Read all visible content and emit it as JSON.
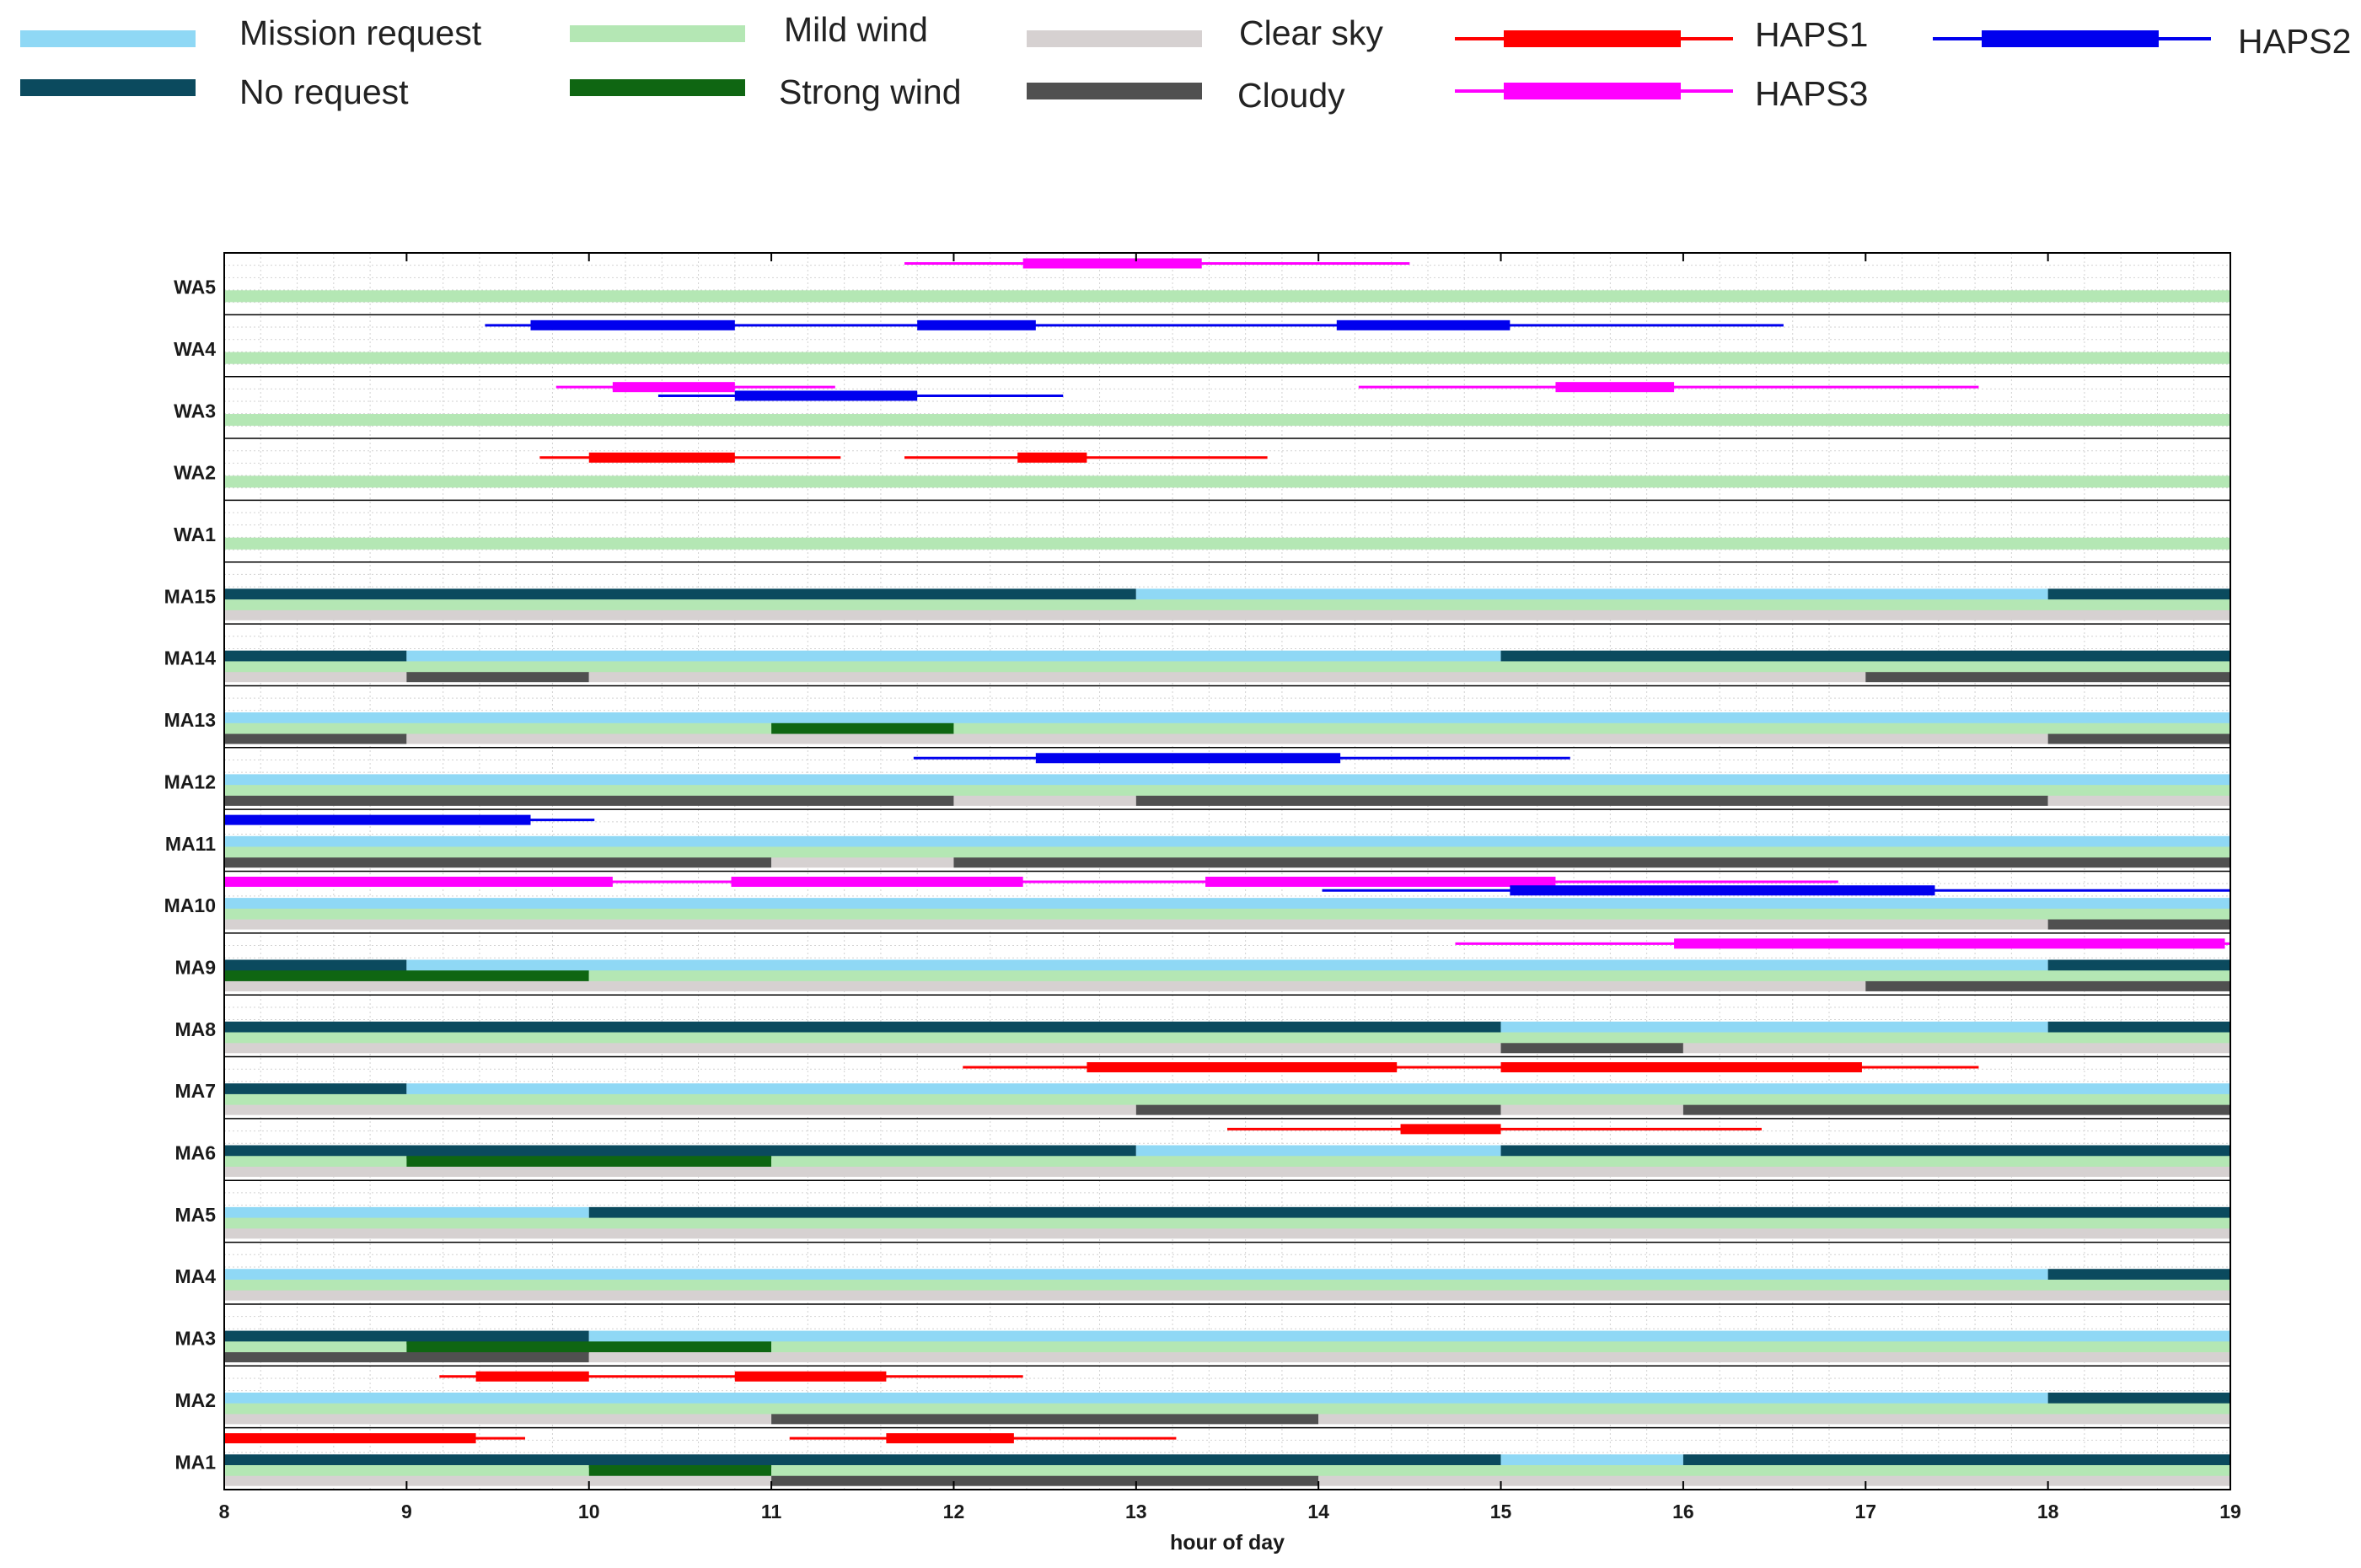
{
  "legend": {
    "items": [
      {
        "key": "mission",
        "label": "Mission request",
        "color": "#8fd8f5",
        "kind": "bar"
      },
      {
        "key": "norequest",
        "label": "No request",
        "color": "#0b4a5e",
        "kind": "bar"
      },
      {
        "key": "mild",
        "label": "Mild wind",
        "color": "#b4e7b4",
        "kind": "bar"
      },
      {
        "key": "strong",
        "label": "Strong wind",
        "color": "#0f6612",
        "kind": "bar"
      },
      {
        "key": "clear",
        "label": "Clear sky",
        "color": "#d6d1d1",
        "kind": "bar"
      },
      {
        "key": "cloudy",
        "label": "Cloudy",
        "color": "#505050",
        "kind": "bar"
      },
      {
        "key": "haps1",
        "label": "HAPS1",
        "color": "#ff0000",
        "kind": "line"
      },
      {
        "key": "haps3",
        "label": "HAPS3",
        "color": "#ff00ff",
        "kind": "line"
      },
      {
        "key": "haps2",
        "label": "HAPS2",
        "color": "#0000ee",
        "kind": "line"
      }
    ]
  },
  "chart_data": {
    "type": "gantt-timeline",
    "xlabel": "hour of day",
    "xlim": [
      8,
      19
    ],
    "xticks": [
      "8",
      "9",
      "10",
      "11",
      "12",
      "13",
      "14",
      "15",
      "16",
      "17",
      "18",
      "19"
    ],
    "colors": {
      "mission": "#8fd8f5",
      "norequest": "#0b4a5e",
      "mild": "#b4e7b4",
      "strong": "#0f6612",
      "clear": "#d6d1d1",
      "cloudy": "#505050",
      "haps1": "#ff0000",
      "haps2": "#0000ee",
      "haps3": "#ff00ff"
    },
    "rows": [
      {
        "label": "WA5",
        "request": [],
        "wind": [
          [
            8,
            19,
            "mild"
          ]
        ],
        "sky": [],
        "haps": [
          {
            "haps": "haps3",
            "lane": 0,
            "win": [
              11.73,
              14.5
            ],
            "active": [
              12.38,
              13.36
            ]
          }
        ]
      },
      {
        "label": "WA4",
        "request": [],
        "wind": [
          [
            8,
            19,
            "mild"
          ]
        ],
        "sky": [],
        "haps": [
          {
            "haps": "haps2",
            "lane": 0,
            "win": [
              9.43,
              16.55
            ],
            "active": [
              9.68,
              10.8
            ]
          },
          {
            "haps": "haps2",
            "lane": 0,
            "win": [
              9.43,
              16.55
            ],
            "active": [
              11.8,
              12.45
            ]
          },
          {
            "haps": "haps2",
            "lane": 0,
            "win": [
              9.43,
              16.55
            ],
            "active": [
              14.1,
              15.05
            ]
          }
        ]
      },
      {
        "label": "WA3",
        "request": [],
        "wind": [
          [
            8,
            19,
            "mild"
          ]
        ],
        "sky": [],
        "haps": [
          {
            "haps": "haps3",
            "lane": 0,
            "win": [
              9.82,
              11.35
            ],
            "active": [
              10.13,
              10.8
            ]
          },
          {
            "haps": "haps3",
            "lane": 0,
            "win": [
              14.22,
              17.62
            ],
            "active": [
              15.3,
              15.95
            ]
          },
          {
            "haps": "haps2",
            "lane": 1,
            "win": [
              10.38,
              12.6
            ],
            "active": [
              10.8,
              11.8
            ]
          }
        ]
      },
      {
        "label": "WA2",
        "request": [],
        "wind": [
          [
            8,
            19,
            "mild"
          ]
        ],
        "sky": [],
        "haps": [
          {
            "haps": "haps1",
            "lane": 1,
            "win": [
              9.73,
              11.38
            ],
            "active": [
              10.0,
              10.8
            ]
          },
          {
            "haps": "haps1",
            "lane": 1,
            "win": [
              11.73,
              13.72
            ],
            "active": [
              12.35,
              12.73
            ]
          }
        ]
      },
      {
        "label": "WA1",
        "request": [],
        "wind": [
          [
            8,
            19,
            "mild"
          ]
        ],
        "sky": [],
        "haps": []
      },
      {
        "label": "MA15",
        "request": [
          [
            8,
            13,
            "norequest"
          ],
          [
            13,
            18,
            "mission"
          ],
          [
            18,
            19,
            "norequest"
          ]
        ],
        "wind": [
          [
            8,
            19,
            "mild"
          ]
        ],
        "sky": [
          [
            8,
            19,
            "clear"
          ]
        ],
        "haps": []
      },
      {
        "label": "MA14",
        "request": [
          [
            8,
            9,
            "norequest"
          ],
          [
            9,
            15,
            "mission"
          ],
          [
            15,
            19,
            "norequest"
          ]
        ],
        "wind": [
          [
            8,
            19,
            "mild"
          ]
        ],
        "sky": [
          [
            8,
            9,
            "clear"
          ],
          [
            9,
            10,
            "cloudy"
          ],
          [
            10,
            17,
            "clear"
          ],
          [
            17,
            19,
            "cloudy"
          ]
        ],
        "haps": []
      },
      {
        "label": "MA13",
        "request": [
          [
            8,
            19,
            "mission"
          ]
        ],
        "wind": [
          [
            8,
            11,
            "mild"
          ],
          [
            11,
            12,
            "strong"
          ],
          [
            12,
            19,
            "mild"
          ]
        ],
        "sky": [
          [
            8,
            9,
            "cloudy"
          ],
          [
            9,
            18,
            "clear"
          ],
          [
            18,
            19,
            "cloudy"
          ]
        ],
        "haps": []
      },
      {
        "label": "MA12",
        "request": [
          [
            8,
            19,
            "mission"
          ]
        ],
        "wind": [
          [
            8,
            19,
            "mild"
          ]
        ],
        "sky": [
          [
            8,
            12,
            "cloudy"
          ],
          [
            12,
            13,
            "clear"
          ],
          [
            13,
            18,
            "cloudy"
          ],
          [
            18,
            19,
            "clear"
          ]
        ],
        "haps": [
          {
            "haps": "haps2",
            "lane": 0,
            "win": [
              11.78,
              15.38
            ],
            "active": [
              12.45,
              14.12
            ]
          }
        ]
      },
      {
        "label": "MA11",
        "request": [
          [
            8,
            19,
            "mission"
          ]
        ],
        "wind": [
          [
            8,
            19,
            "mild"
          ]
        ],
        "sky": [
          [
            8,
            11,
            "cloudy"
          ],
          [
            11,
            12,
            "clear"
          ],
          [
            12,
            19,
            "cloudy"
          ]
        ],
        "haps": [
          {
            "haps": "haps2",
            "lane": 0,
            "win": [
              8,
              10.03
            ],
            "active": [
              8,
              9.68
            ]
          }
        ]
      },
      {
        "label": "MA10",
        "request": [
          [
            8,
            19,
            "mission"
          ]
        ],
        "wind": [
          [
            8,
            19,
            "mild"
          ]
        ],
        "sky": [
          [
            8,
            18,
            "clear"
          ],
          [
            18,
            19,
            "cloudy"
          ]
        ],
        "haps": [
          {
            "haps": "haps3",
            "lane": 0,
            "win": [
              8,
              16.85
            ],
            "active": [
              8,
              10.13
            ]
          },
          {
            "haps": "haps3",
            "lane": 0,
            "win": [
              8,
              16.85
            ],
            "active": [
              10.78,
              12.38
            ]
          },
          {
            "haps": "haps3",
            "lane": 0,
            "win": [
              8,
              16.85
            ],
            "active": [
              13.38,
              15.3
            ]
          },
          {
            "haps": "haps2",
            "lane": 1,
            "win": [
              14.02,
              19
            ],
            "active": [
              15.05,
              17.38
            ]
          }
        ]
      },
      {
        "label": "MA9",
        "request": [
          [
            8,
            9,
            "norequest"
          ],
          [
            9,
            18,
            "mission"
          ],
          [
            18,
            19,
            "norequest"
          ]
        ],
        "wind": [
          [
            8,
            10,
            "strong"
          ],
          [
            10,
            19,
            "mild"
          ]
        ],
        "sky": [
          [
            8,
            17,
            "clear"
          ],
          [
            17,
            19,
            "cloudy"
          ]
        ],
        "haps": [
          {
            "haps": "haps3",
            "lane": 0,
            "win": [
              14.75,
              19
            ],
            "active": [
              15.95,
              18.97
            ]
          }
        ]
      },
      {
        "label": "MA8",
        "request": [
          [
            8,
            15,
            "norequest"
          ],
          [
            15,
            18,
            "mission"
          ],
          [
            18,
            19,
            "norequest"
          ]
        ],
        "wind": [
          [
            8,
            19,
            "mild"
          ]
        ],
        "sky": [
          [
            8,
            15,
            "clear"
          ],
          [
            15,
            16,
            "cloudy"
          ],
          [
            16,
            19,
            "clear"
          ]
        ],
        "haps": []
      },
      {
        "label": "MA7",
        "request": [
          [
            8,
            9,
            "norequest"
          ],
          [
            9,
            19,
            "mission"
          ]
        ],
        "wind": [
          [
            8,
            19,
            "mild"
          ]
        ],
        "sky": [
          [
            8,
            13,
            "clear"
          ],
          [
            13,
            15,
            "cloudy"
          ],
          [
            15,
            16,
            "clear"
          ],
          [
            16,
            19,
            "cloudy"
          ]
        ],
        "haps": [
          {
            "haps": "haps1",
            "lane": 0,
            "win": [
              12.05,
              17.62
            ],
            "active": [
              12.73,
              14.43
            ]
          },
          {
            "haps": "haps1",
            "lane": 0,
            "win": [
              12.05,
              17.62
            ],
            "active": [
              15.0,
              16.98
            ]
          }
        ]
      },
      {
        "label": "MA6",
        "request": [
          [
            8,
            13,
            "norequest"
          ],
          [
            13,
            15,
            "mission"
          ],
          [
            15,
            19,
            "norequest"
          ]
        ],
        "wind": [
          [
            8,
            9,
            "mild"
          ],
          [
            9,
            11,
            "strong"
          ],
          [
            11,
            19,
            "mild"
          ]
        ],
        "sky": [
          [
            8,
            19,
            "clear"
          ]
        ],
        "haps": [
          {
            "haps": "haps1",
            "lane": 0,
            "win": [
              13.5,
              16.43
            ],
            "active": [
              14.45,
              15.0
            ]
          }
        ]
      },
      {
        "label": "MA5",
        "request": [
          [
            8,
            10,
            "mission"
          ],
          [
            10,
            19,
            "norequest"
          ]
        ],
        "wind": [
          [
            8,
            19,
            "mild"
          ]
        ],
        "sky": [
          [
            8,
            19,
            "clear"
          ]
        ],
        "haps": []
      },
      {
        "label": "MA4",
        "request": [
          [
            8,
            18,
            "mission"
          ],
          [
            18,
            19,
            "norequest"
          ]
        ],
        "wind": [
          [
            8,
            19,
            "mild"
          ]
        ],
        "sky": [
          [
            8,
            19,
            "clear"
          ]
        ],
        "haps": []
      },
      {
        "label": "MA3",
        "request": [
          [
            8,
            10,
            "norequest"
          ],
          [
            10,
            19,
            "mission"
          ]
        ],
        "wind": [
          [
            8,
            9,
            "mild"
          ],
          [
            9,
            11,
            "strong"
          ],
          [
            11,
            19,
            "mild"
          ]
        ],
        "sky": [
          [
            8,
            10,
            "cloudy"
          ],
          [
            10,
            19,
            "clear"
          ]
        ],
        "haps": []
      },
      {
        "label": "MA2",
        "request": [
          [
            8,
            18,
            "mission"
          ],
          [
            18,
            19,
            "norequest"
          ]
        ],
        "wind": [
          [
            8,
            19,
            "mild"
          ]
        ],
        "sky": [
          [
            8,
            11,
            "clear"
          ],
          [
            11,
            14,
            "cloudy"
          ],
          [
            14,
            19,
            "clear"
          ]
        ],
        "haps": [
          {
            "haps": "haps1",
            "lane": 0,
            "win": [
              9.18,
              12.38
            ],
            "active": [
              9.38,
              10.0
            ]
          },
          {
            "haps": "haps1",
            "lane": 0,
            "win": [
              9.18,
              12.38
            ],
            "active": [
              10.8,
              11.63
            ]
          }
        ]
      },
      {
        "label": "MA1",
        "request": [
          [
            8,
            15,
            "norequest"
          ],
          [
            15,
            16,
            "mission"
          ],
          [
            16,
            19,
            "norequest"
          ]
        ],
        "wind": [
          [
            8,
            10,
            "mild"
          ],
          [
            10,
            11,
            "strong"
          ],
          [
            11,
            19,
            "mild"
          ]
        ],
        "sky": [
          [
            8,
            11,
            "clear"
          ],
          [
            11,
            14,
            "cloudy"
          ],
          [
            14,
            19,
            "clear"
          ]
        ],
        "haps": [
          {
            "haps": "haps1",
            "lane": 0,
            "win": [
              8,
              9.65
            ],
            "active": [
              8,
              9.38
            ]
          },
          {
            "haps": "haps1",
            "lane": 0,
            "win": [
              11.1,
              13.22
            ],
            "active": [
              11.63,
              12.33
            ]
          }
        ]
      }
    ]
  }
}
